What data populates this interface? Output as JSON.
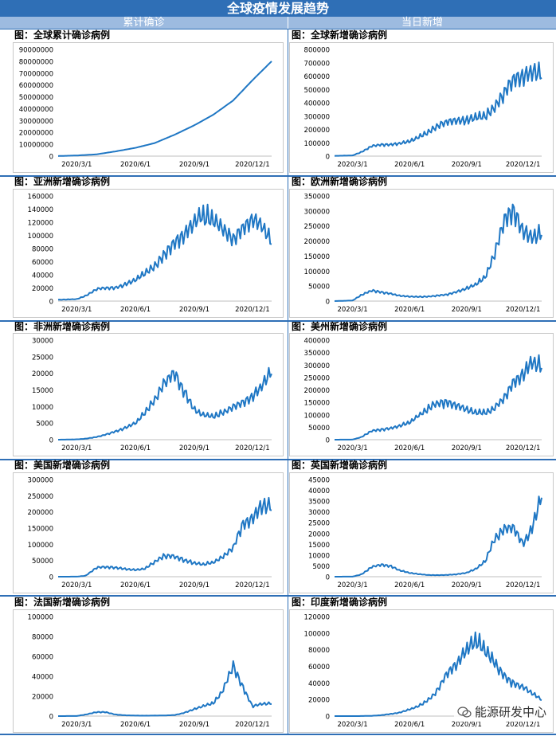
{
  "page": {
    "title": "全球疫情发展趋势",
    "left_column": "累计确诊",
    "right_column": "当日新增",
    "watermark": "能源研发中心",
    "line_color": "#1f77c4"
  },
  "chart_data": [
    {
      "id": "global-cum",
      "type": "line",
      "title": "图：全球累计确诊病例",
      "ylim": [
        0,
        90000000
      ],
      "yticks": [
        0,
        10000000,
        20000000,
        30000000,
        40000000,
        50000000,
        60000000,
        70000000,
        80000000,
        90000000
      ],
      "xticks": [
        "2020/3/1",
        "2020/6/1",
        "2020/9/1",
        "2020/12/1"
      ],
      "xrange": [
        "2020/2/1",
        "2020/12/31"
      ],
      "series": [
        {
          "name": "全球累计确诊",
          "x": [
            "2020/2/1",
            "2020/3/1",
            "2020/4/1",
            "2020/5/1",
            "2020/6/1",
            "2020/7/1",
            "2020/8/1",
            "2020/9/1",
            "2020/10/1",
            "2020/11/1",
            "2020/12/1",
            "2020/12/31"
          ],
          "y": [
            100000,
            500000,
            1500000,
            4000000,
            7000000,
            11000000,
            18000000,
            26000000,
            35000000,
            47000000,
            64000000,
            80000000
          ]
        }
      ]
    },
    {
      "id": "global-daily",
      "type": "line",
      "title": "图：全球新增确诊病例",
      "ylim": [
        0,
        800000
      ],
      "yticks": [
        0,
        100000,
        200000,
        300000,
        400000,
        500000,
        600000,
        700000,
        800000
      ],
      "xticks": [
        "2020/3/1",
        "2020/6/1",
        "2020/9/1",
        "2020/12/1"
      ],
      "xrange": [
        "2020/2/1",
        "2020/12/31"
      ],
      "series": [
        {
          "name": "全球新增确诊",
          "x": [
            "2020/2/1",
            "2020/3/1",
            "2020/3/15",
            "2020/4/1",
            "2020/4/15",
            "2020/5/1",
            "2020/5/15",
            "2020/6/1",
            "2020/6/15",
            "2020/7/1",
            "2020/7/15",
            "2020/8/1",
            "2020/8/15",
            "2020/9/1",
            "2020/9/15",
            "2020/10/1",
            "2020/10/15",
            "2020/11/1",
            "2020/11/15",
            "2020/12/1",
            "2020/12/15",
            "2020/12/31"
          ],
          "y": [
            2000,
            5000,
            30000,
            75000,
            85000,
            85000,
            95000,
            110000,
            140000,
            180000,
            220000,
            260000,
            265000,
            270000,
            290000,
            300000,
            360000,
            480000,
            580000,
            600000,
            640000,
            620000
          ]
        }
      ]
    },
    {
      "id": "asia-daily",
      "type": "line",
      "title": "图：亚洲新增确诊病例",
      "ylim": [
        0,
        160000
      ],
      "yticks": [
        0,
        20000,
        40000,
        60000,
        80000,
        100000,
        120000,
        140000,
        160000
      ],
      "xticks": [
        "2020/3/1",
        "2020/6/1",
        "2020/9/1",
        "2020/12/1"
      ],
      "xrange": [
        "2020/2/1",
        "2020/12/31"
      ],
      "series": [
        {
          "name": "亚洲新增确诊",
          "x": [
            "2020/2/1",
            "2020/3/1",
            "2020/3/15",
            "2020/4/1",
            "2020/4/15",
            "2020/5/1",
            "2020/5/15",
            "2020/6/1",
            "2020/6/15",
            "2020/7/1",
            "2020/7/15",
            "2020/8/1",
            "2020/8/15",
            "2020/9/1",
            "2020/9/15",
            "2020/10/1",
            "2020/10/15",
            "2020/11/1",
            "2020/11/15",
            "2020/12/1",
            "2020/12/15",
            "2020/12/31"
          ],
          "y": [
            2000,
            3000,
            8000,
            18000,
            20000,
            20000,
            25000,
            32000,
            42000,
            52000,
            70000,
            88000,
            100000,
            120000,
            130000,
            125000,
            110000,
            95000,
            110000,
            125000,
            115000,
            90000
          ]
        }
      ]
    },
    {
      "id": "europe-daily",
      "type": "line",
      "title": "图：欧洲新增确诊病例",
      "ylim": [
        0,
        350000
      ],
      "yticks": [
        0,
        50000,
        100000,
        150000,
        200000,
        250000,
        300000,
        350000
      ],
      "xticks": [
        "2020/3/1",
        "2020/6/1",
        "2020/9/1",
        "2020/12/1"
      ],
      "xrange": [
        "2020/2/1",
        "2020/12/31"
      ],
      "series": [
        {
          "name": "欧洲新增确诊",
          "x": [
            "2020/2/1",
            "2020/3/1",
            "2020/3/15",
            "2020/4/1",
            "2020/4/15",
            "2020/5/1",
            "2020/5/15",
            "2020/6/1",
            "2020/6/15",
            "2020/7/1",
            "2020/7/15",
            "2020/8/1",
            "2020/8/15",
            "2020/9/1",
            "2020/9/15",
            "2020/10/1",
            "2020/10/15",
            "2020/11/1",
            "2020/11/15",
            "2020/12/1",
            "2020/12/15",
            "2020/12/31"
          ],
          "y": [
            0,
            2000,
            20000,
            35000,
            30000,
            25000,
            18000,
            15000,
            14000,
            15000,
            18000,
            22000,
            30000,
            42000,
            55000,
            80000,
            150000,
            270000,
            300000,
            230000,
            210000,
            230000
          ]
        }
      ]
    },
    {
      "id": "africa-daily",
      "type": "line",
      "title": "图：非洲新增确诊病例",
      "ylim": [
        0,
        30000
      ],
      "yticks": [
        0,
        5000,
        10000,
        15000,
        20000,
        25000,
        30000
      ],
      "xticks": [
        "2020/3/1",
        "2020/6/1",
        "2020/9/1",
        "2020/12/1"
      ],
      "xrange": [
        "2020/2/1",
        "2020/12/31"
      ],
      "series": [
        {
          "name": "非洲新增确诊",
          "x": [
            "2020/2/1",
            "2020/3/1",
            "2020/3/15",
            "2020/4/1",
            "2020/4/15",
            "2020/5/1",
            "2020/5/15",
            "2020/6/1",
            "2020/6/15",
            "2020/7/1",
            "2020/7/15",
            "2020/8/1",
            "2020/8/15",
            "2020/9/1",
            "2020/9/15",
            "2020/10/1",
            "2020/10/15",
            "2020/11/1",
            "2020/11/15",
            "2020/12/1",
            "2020/12/15",
            "2020/12/31"
          ],
          "y": [
            0,
            100,
            300,
            800,
            1500,
            2500,
            3500,
            5000,
            8000,
            12000,
            17000,
            20000,
            15000,
            9000,
            7500,
            7000,
            8000,
            10000,
            11000,
            13000,
            16000,
            21000
          ]
        }
      ]
    },
    {
      "id": "americas-daily",
      "type": "line",
      "title": "图：美州新增确诊病例",
      "ylim": [
        0,
        400000
      ],
      "yticks": [
        0,
        50000,
        100000,
        150000,
        200000,
        250000,
        300000,
        350000,
        400000
      ],
      "xticks": [
        "2020/3/1",
        "2020/6/1",
        "2020/9/1",
        "2020/12/1"
      ],
      "xrange": [
        "2020/2/1",
        "2020/12/31"
      ],
      "series": [
        {
          "name": "美州新增确诊",
          "x": [
            "2020/2/1",
            "2020/3/1",
            "2020/3/15",
            "2020/4/1",
            "2020/4/15",
            "2020/5/1",
            "2020/5/15",
            "2020/6/1",
            "2020/6/15",
            "2020/7/1",
            "2020/7/15",
            "2020/8/1",
            "2020/8/15",
            "2020/9/1",
            "2020/9/15",
            "2020/10/1",
            "2020/10/15",
            "2020/11/1",
            "2020/11/15",
            "2020/12/1",
            "2020/12/15",
            "2020/12/31"
          ],
          "y": [
            0,
            500,
            10000,
            35000,
            40000,
            45000,
            55000,
            70000,
            95000,
            125000,
            145000,
            150000,
            140000,
            120000,
            110000,
            110000,
            125000,
            170000,
            230000,
            260000,
            310000,
            300000
          ]
        }
      ]
    },
    {
      "id": "usa-daily",
      "type": "line",
      "title": "图：美国新增确诊病例",
      "ylim": [
        0,
        300000
      ],
      "yticks": [
        0,
        50000,
        100000,
        150000,
        200000,
        250000,
        300000
      ],
      "xticks": [
        "2020/3/1",
        "2020/6/1",
        "2020/9/1",
        "2020/12/1"
      ],
      "xrange": [
        "2020/2/1",
        "2020/12/31"
      ],
      "series": [
        {
          "name": "美国新增确诊",
          "x": [
            "2020/2/1",
            "2020/3/1",
            "2020/3/15",
            "2020/4/1",
            "2020/4/15",
            "2020/5/1",
            "2020/5/15",
            "2020/6/1",
            "2020/6/15",
            "2020/7/1",
            "2020/7/15",
            "2020/8/1",
            "2020/8/15",
            "2020/9/1",
            "2020/9/15",
            "2020/10/1",
            "2020/10/15",
            "2020/11/1",
            "2020/11/15",
            "2020/12/1",
            "2020/12/15",
            "2020/12/31"
          ],
          "y": [
            0,
            200,
            3000,
            28000,
            30000,
            28000,
            24000,
            21000,
            24000,
            45000,
            65000,
            62000,
            52000,
            42000,
            38000,
            45000,
            60000,
            90000,
            160000,
            180000,
            220000,
            215000
          ]
        }
      ]
    },
    {
      "id": "uk-daily",
      "type": "line",
      "title": "图：英国新增确诊病例",
      "ylim": [
        0,
        45000
      ],
      "yticks": [
        0,
        5000,
        10000,
        15000,
        20000,
        25000,
        30000,
        35000,
        40000,
        45000
      ],
      "xticks": [
        "2020/3/1",
        "2020/6/1",
        "2020/9/1",
        "2020/12/1"
      ],
      "xrange": [
        "2020/2/1",
        "2020/12/31"
      ],
      "series": [
        {
          "name": "英国新增确诊",
          "x": [
            "2020/2/1",
            "2020/3/1",
            "2020/3/15",
            "2020/4/1",
            "2020/4/15",
            "2020/5/1",
            "2020/5/15",
            "2020/6/1",
            "2020/6/15",
            "2020/7/1",
            "2020/7/15",
            "2020/8/1",
            "2020/8/15",
            "2020/9/1",
            "2020/9/15",
            "2020/10/1",
            "2020/10/15",
            "2020/11/1",
            "2020/11/15",
            "2020/12/1",
            "2020/12/15",
            "2020/12/31"
          ],
          "y": [
            0,
            50,
            1000,
            4500,
            5500,
            5000,
            3000,
            1800,
            1200,
            800,
            700,
            800,
            1100,
            1800,
            3500,
            7000,
            17000,
            22000,
            23000,
            15000,
            22000,
            38000
          ]
        }
      ]
    },
    {
      "id": "france-daily",
      "type": "line",
      "title": "图：法国新增确诊病例",
      "ylim": [
        0,
        100000
      ],
      "yticks": [
        0,
        20000,
        40000,
        60000,
        80000,
        100000
      ],
      "xticks": [
        "2020/3/1",
        "2020/6/1",
        "2020/9/1",
        "2020/12/1"
      ],
      "xrange": [
        "2020/2/1",
        "2020/12/31"
      ],
      "series": [
        {
          "name": "法国新增确诊",
          "x": [
            "2020/2/1",
            "2020/3/1",
            "2020/3/15",
            "2020/4/1",
            "2020/4/15",
            "2020/5/1",
            "2020/5/15",
            "2020/6/1",
            "2020/6/15",
            "2020/7/1",
            "2020/7/15",
            "2020/8/1",
            "2020/8/15",
            "2020/9/1",
            "2020/9/15",
            "2020/10/1",
            "2020/10/15",
            "2020/11/1",
            "2020/11/15",
            "2020/12/1",
            "2020/12/15",
            "2020/12/31"
          ],
          "y": [
            0,
            100,
            1500,
            4000,
            4000,
            1500,
            800,
            500,
            400,
            500,
            600,
            1000,
            3000,
            7000,
            10000,
            13000,
            25000,
            50000,
            30000,
            10000,
            12000,
            13000
          ]
        }
      ]
    },
    {
      "id": "india-daily",
      "type": "line",
      "title": "图：印度新增确诊病例",
      "ylim": [
        0,
        120000
      ],
      "yticks": [
        0,
        20000,
        40000,
        60000,
        80000,
        100000,
        120000
      ],
      "xticks": [
        "2020/3/1",
        "2020/6/1",
        "2020/9/1",
        "2020/12/1"
      ],
      "xrange": [
        "2020/2/1",
        "2020/12/31"
      ],
      "series": [
        {
          "name": "印度新增确诊",
          "x": [
            "2020/2/1",
            "2020/3/1",
            "2020/3/15",
            "2020/4/1",
            "2020/4/15",
            "2020/5/1",
            "2020/5/15",
            "2020/6/1",
            "2020/6/15",
            "2020/7/1",
            "2020/7/15",
            "2020/8/1",
            "2020/8/15",
            "2020/9/1",
            "2020/9/15",
            "2020/10/1",
            "2020/10/15",
            "2020/11/1",
            "2020/11/15",
            "2020/12/1",
            "2020/12/15",
            "2020/12/31"
          ],
          "y": [
            0,
            0,
            50,
            300,
            1000,
            2500,
            4000,
            8000,
            12000,
            19000,
            30000,
            52000,
            62000,
            80000,
            92000,
            80000,
            65000,
            48000,
            40000,
            35000,
            28000,
            20000
          ]
        }
      ]
    }
  ]
}
